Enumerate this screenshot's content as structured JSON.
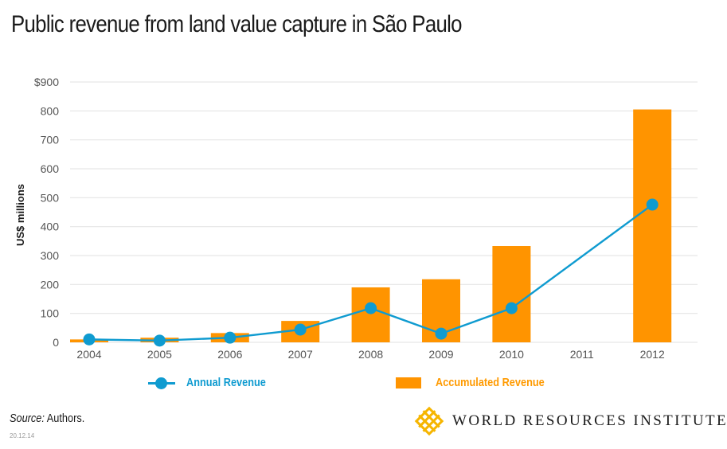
{
  "header": {
    "title": "Public revenue from land value capture in São Paulo"
  },
  "chart_data": {
    "type": "bar",
    "title": "Public revenue from land value capture in São Paulo",
    "xlabel": "",
    "ylabel": "US$ millions",
    "ylim": [
      0,
      900
    ],
    "y_ticks": [
      0,
      100,
      200,
      300,
      400,
      500,
      600,
      700,
      800,
      900
    ],
    "y_tick_labels": [
      "0",
      "100",
      "200",
      "300",
      "400",
      "500",
      "600",
      "700",
      "800",
      "$900"
    ],
    "grid": true,
    "categories": [
      "2004",
      "2005",
      "2006",
      "2007",
      "2008",
      "2009",
      "2010",
      "2011",
      "2012"
    ],
    "series": [
      {
        "name": "Accumulated Revenue",
        "type": "bar",
        "color": "#ff9400",
        "values": [
          10,
          16,
          32,
          74,
          190,
          218,
          333,
          null,
          805
        ]
      },
      {
        "name": "Annual Revenue",
        "type": "line",
        "color": "#0f9bd0",
        "values": [
          10,
          6,
          16,
          44,
          118,
          30,
          118,
          null,
          476
        ]
      }
    ],
    "legend": {
      "placement": "bottom",
      "entries": [
        "Annual Revenue",
        "Accumulated Revenue"
      ]
    }
  },
  "legend": {
    "annual_label": "Annual Revenue",
    "accumulated_label": "Accumulated Revenue"
  },
  "footer": {
    "source_prefix": "Source:",
    "source_text": " Authors.",
    "date": "20.12.14",
    "logo_text": "WORLD RESOURCES INSTITUTE"
  },
  "colors": {
    "annual": "#0f9bd0",
    "accumulated": "#ff9400",
    "logo": "#f6b500"
  }
}
